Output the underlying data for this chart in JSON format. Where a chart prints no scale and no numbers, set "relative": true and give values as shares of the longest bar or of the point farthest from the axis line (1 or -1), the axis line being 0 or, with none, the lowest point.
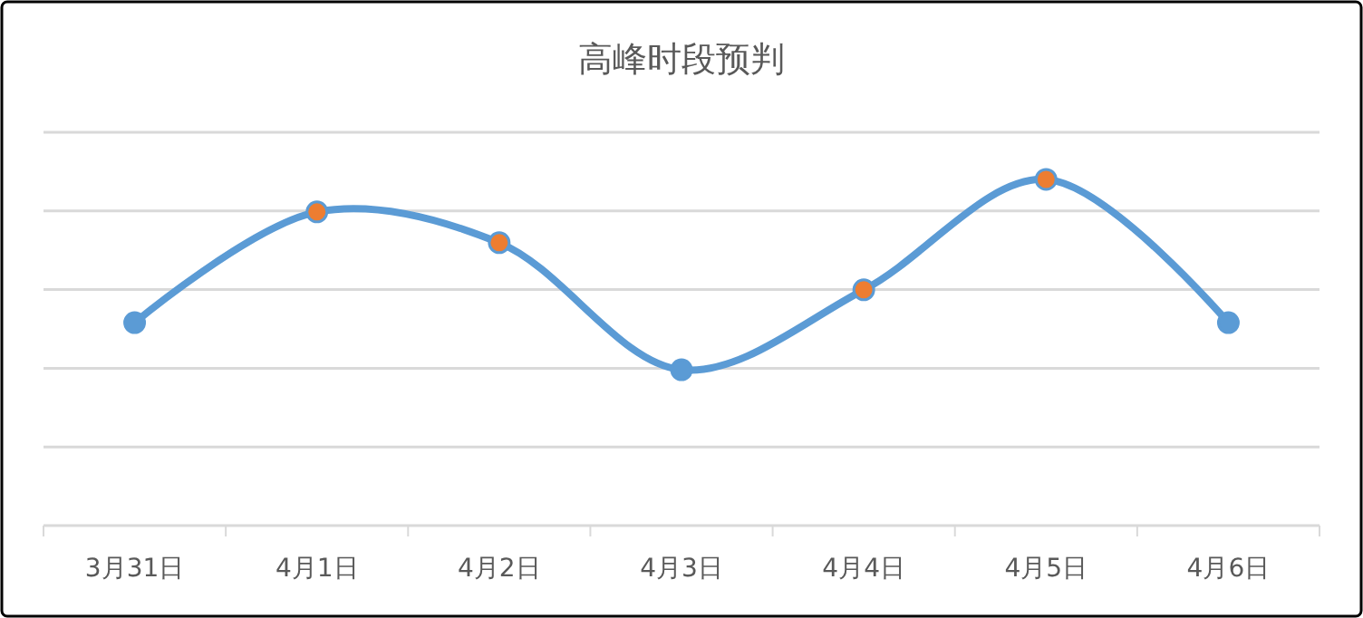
{
  "chart_data": {
    "type": "line",
    "title": "高峰时段预判",
    "relative": true,
    "categories": [
      "3月31日",
      "4月1日",
      "4月2日",
      "4月3日",
      "4月4日",
      "4月5日",
      "4月6日"
    ],
    "grid": "y",
    "marker": "circle",
    "series": [
      {
        "color": "#5b9bd5",
        "colors": [
          "#5b9bd5",
          "#ed7d31",
          "#ed7d31",
          "#5b9bd5",
          "#ed7d31",
          "#ed7d31",
          "#5b9bd5"
        ],
        "values": [
          0.586,
          0.906,
          0.817,
          0.45,
          0.681,
          1,
          0.586
        ]
      }
    ]
  }
}
